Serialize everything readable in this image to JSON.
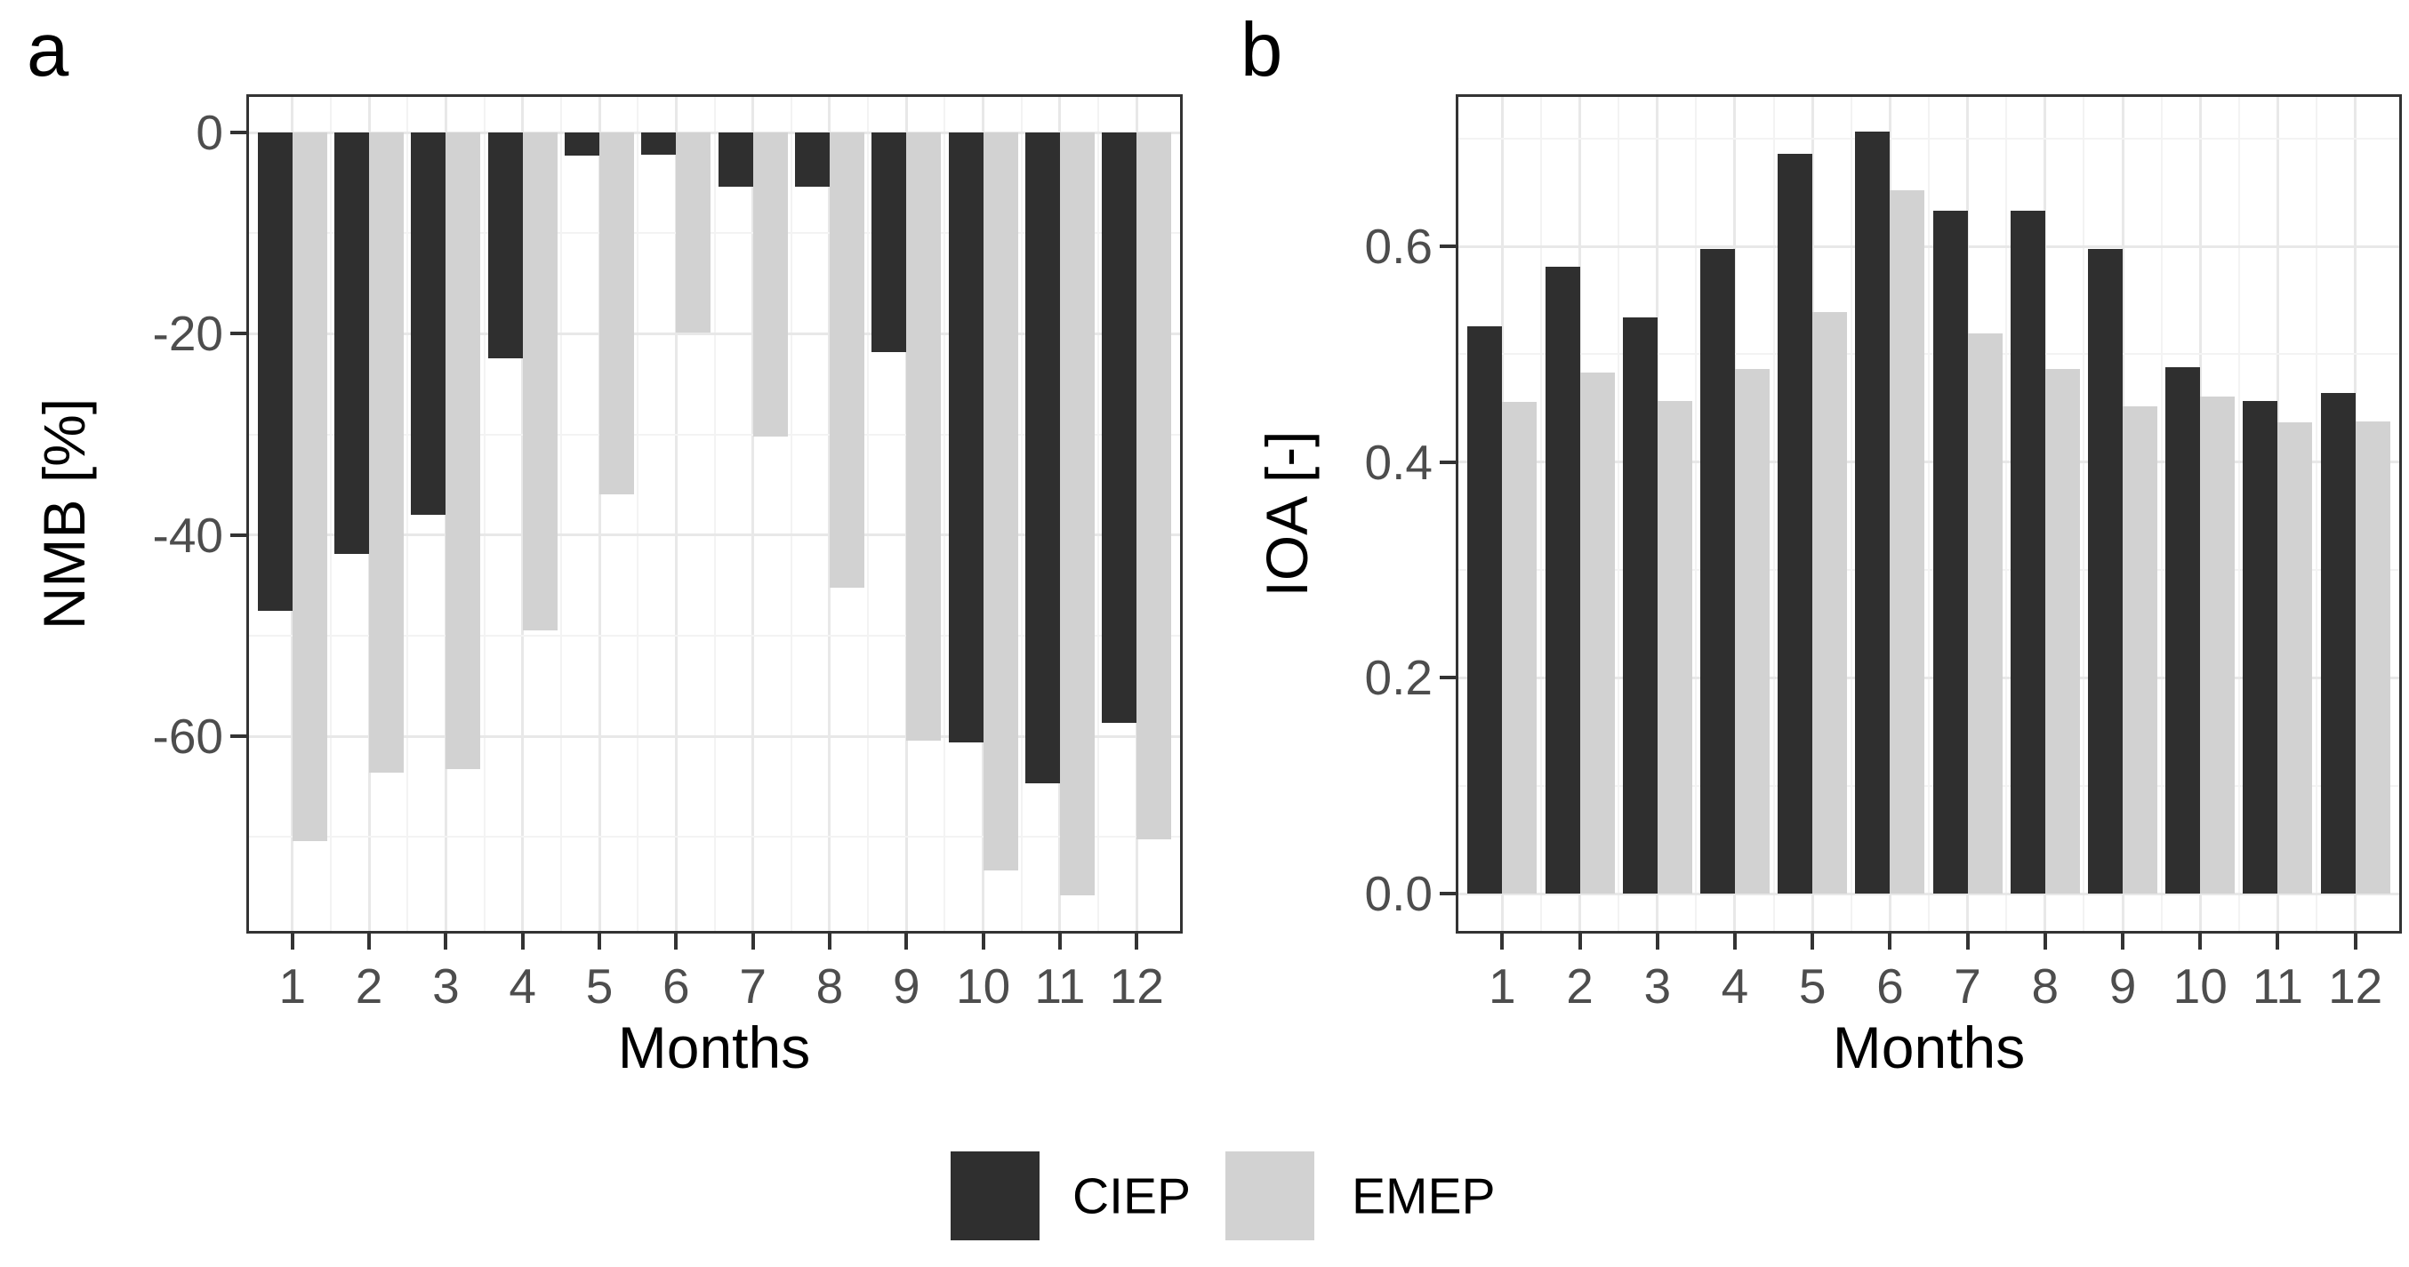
{
  "chart_data": [
    {
      "type": "bar",
      "panel_label": "a",
      "title": "",
      "xlabel": "Months",
      "ylabel": "NMB [%]",
      "categories": [
        "1",
        "2",
        "3",
        "4",
        "5",
        "6",
        "7",
        "8",
        "9",
        "10",
        "11",
        "12"
      ],
      "series": [
        {
          "name": "CIEP",
          "color": "#2f2f2f",
          "values": [
            -47.5,
            -41.9,
            -38.0,
            -22.4,
            -2.3,
            -2.2,
            -5.4,
            -5.4,
            -21.8,
            -60.6,
            -64.7,
            -58.7
          ]
        },
        {
          "name": "EMEP",
          "color": "#d2d2d2",
          "values": [
            -70.4,
            -63.6,
            -63.3,
            -49.5,
            -36.0,
            -19.9,
            -30.2,
            -45.2,
            -60.4,
            -73.3,
            -75.8,
            -70.2
          ]
        }
      ],
      "ylim": [
        -79.6,
        3.8
      ],
      "y_major_ticks": {
        "values": [
          0,
          -20,
          -40,
          -60
        ],
        "labels": [
          "0",
          "-20",
          "-40",
          "-60"
        ]
      },
      "y_minor_ticks": [
        -10,
        -30,
        -50,
        -70
      ],
      "grid": true,
      "legend_position": "bottom"
    },
    {
      "type": "bar",
      "panel_label": "b",
      "title": "",
      "xlabel": "Months",
      "ylabel": "IOA [-]",
      "categories": [
        "1",
        "2",
        "3",
        "4",
        "5",
        "6",
        "7",
        "8",
        "9",
        "10",
        "11",
        "12"
      ],
      "series": [
        {
          "name": "CIEP",
          "color": "#2f2f2f",
          "values": [
            0.526,
            0.581,
            0.534,
            0.598,
            0.686,
            0.706,
            0.633,
            0.633,
            0.598,
            0.488,
            0.457,
            0.464
          ]
        },
        {
          "name": "EMEP",
          "color": "#d2d2d2",
          "values": [
            0.456,
            0.483,
            0.457,
            0.486,
            0.539,
            0.652,
            0.519,
            0.486,
            0.452,
            0.461,
            0.437,
            0.438
          ]
        }
      ],
      "ylim": [
        -0.037,
        0.741
      ],
      "y_major_ticks": {
        "values": [
          0.0,
          0.2,
          0.4,
          0.6
        ],
        "labels": [
          "0.0",
          "0.2",
          "0.4",
          "0.6"
        ]
      },
      "y_minor_ticks": [
        0.1,
        0.3,
        0.5,
        0.7
      ],
      "grid": true,
      "legend_position": "bottom"
    }
  ],
  "legend": {
    "entries": [
      {
        "label": "CIEP",
        "color": "#2f2f2f"
      },
      {
        "label": "EMEP",
        "color": "#d2d2d2"
      }
    ]
  }
}
